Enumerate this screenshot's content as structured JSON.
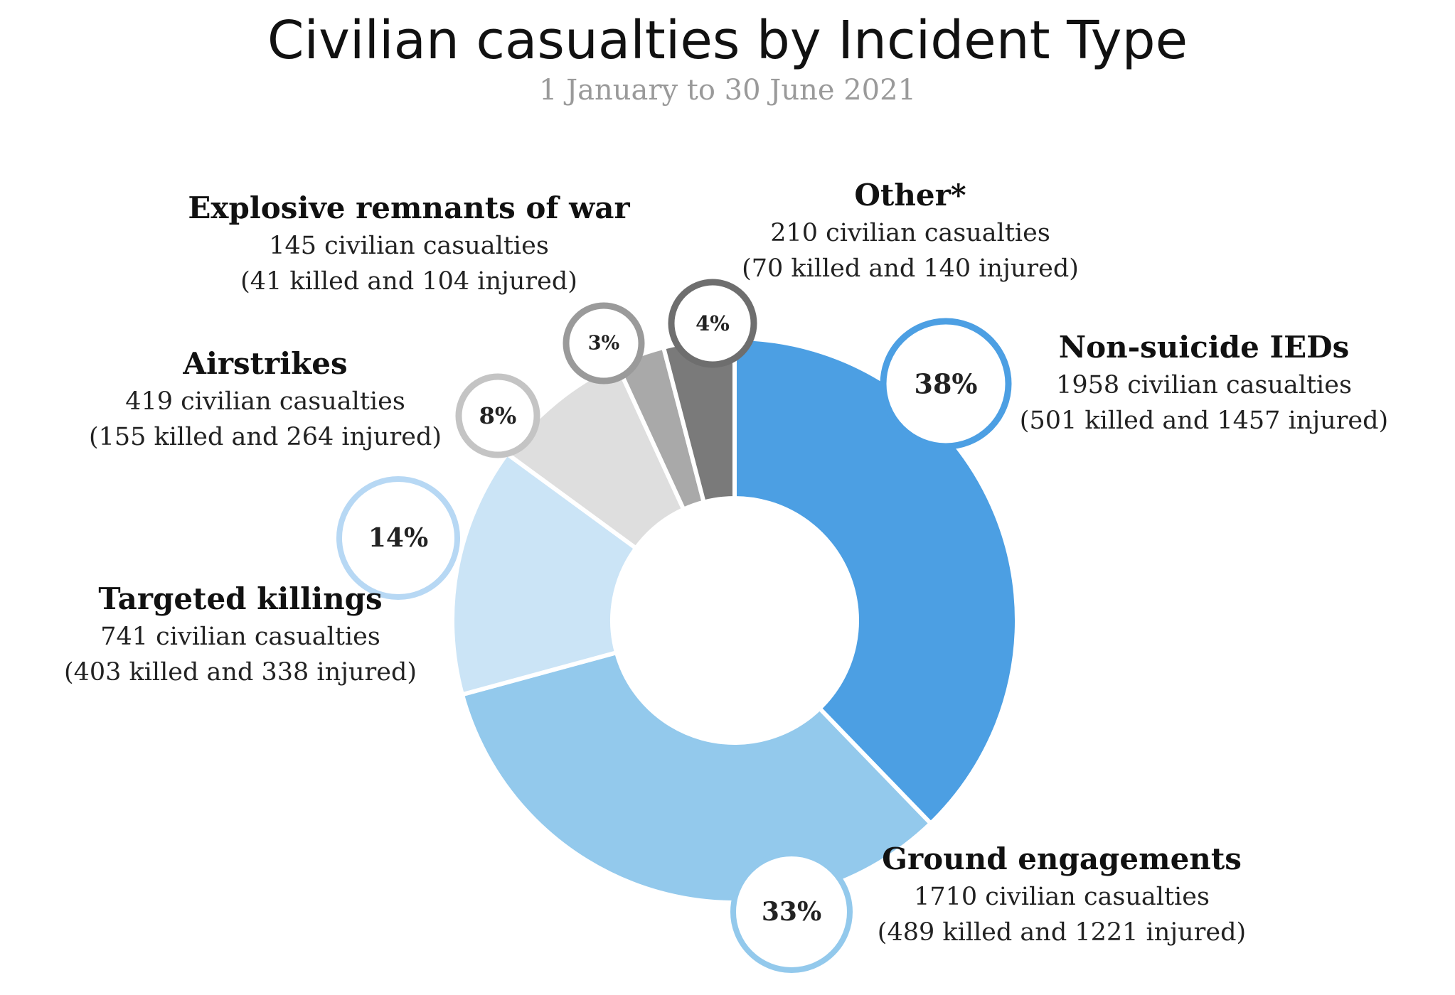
{
  "title": "Civilian casualties by Incident Type",
  "subtitle": "1 January to 30 June 2021",
  "chart_data": {
    "type": "pie",
    "variant": "donut",
    "title": "Civilian casualties by Incident Type",
    "subtitle": "1 January to 30 June 2021",
    "slices": [
      {
        "label": "Non-suicide IEDs",
        "value": 1958,
        "percent_label": "38%",
        "casualties_text": "1958 civilian casualties",
        "detail_text": "(501 killed and 1457 injured)",
        "color": "#4c9fe3",
        "badge_color": "#4c9fe3"
      },
      {
        "label": "Ground engagements",
        "value": 1710,
        "percent_label": "33%",
        "casualties_text": "1710 civilian casualties",
        "detail_text": "(489 killed and 1221 injured)",
        "color": "#93c9ec",
        "badge_color": "#93c9ec"
      },
      {
        "label": "Targeted killings",
        "value": 741,
        "percent_label": "14%",
        "casualties_text": "741 civilian casualties",
        "detail_text": "(403 killed and 338 injured)",
        "color": "#cbe4f6",
        "badge_color": "#b7d8f4"
      },
      {
        "label": "Airstrikes",
        "value": 419,
        "percent_label": "8%",
        "casualties_text": "419 civilian casualties",
        "detail_text": "(155 killed and 264 injured)",
        "color": "#dedede",
        "badge_color": "#c4c4c4"
      },
      {
        "label": "Explosive remnants of war",
        "value": 145,
        "percent_label": "3%",
        "casualties_text": "145 civilian casualties",
        "detail_text": "(41 killed and 104 injured)",
        "color": "#a9a9a9",
        "badge_color": "#9a9a9a"
      },
      {
        "label": "Other*",
        "value": 210,
        "percent_label": "4%",
        "casualties_text": "210 civilian casualties",
        "detail_text": "(70 killed and 140 injured)",
        "color": "#7a7a7a",
        "badge_color": "#6e6e6e"
      }
    ]
  }
}
